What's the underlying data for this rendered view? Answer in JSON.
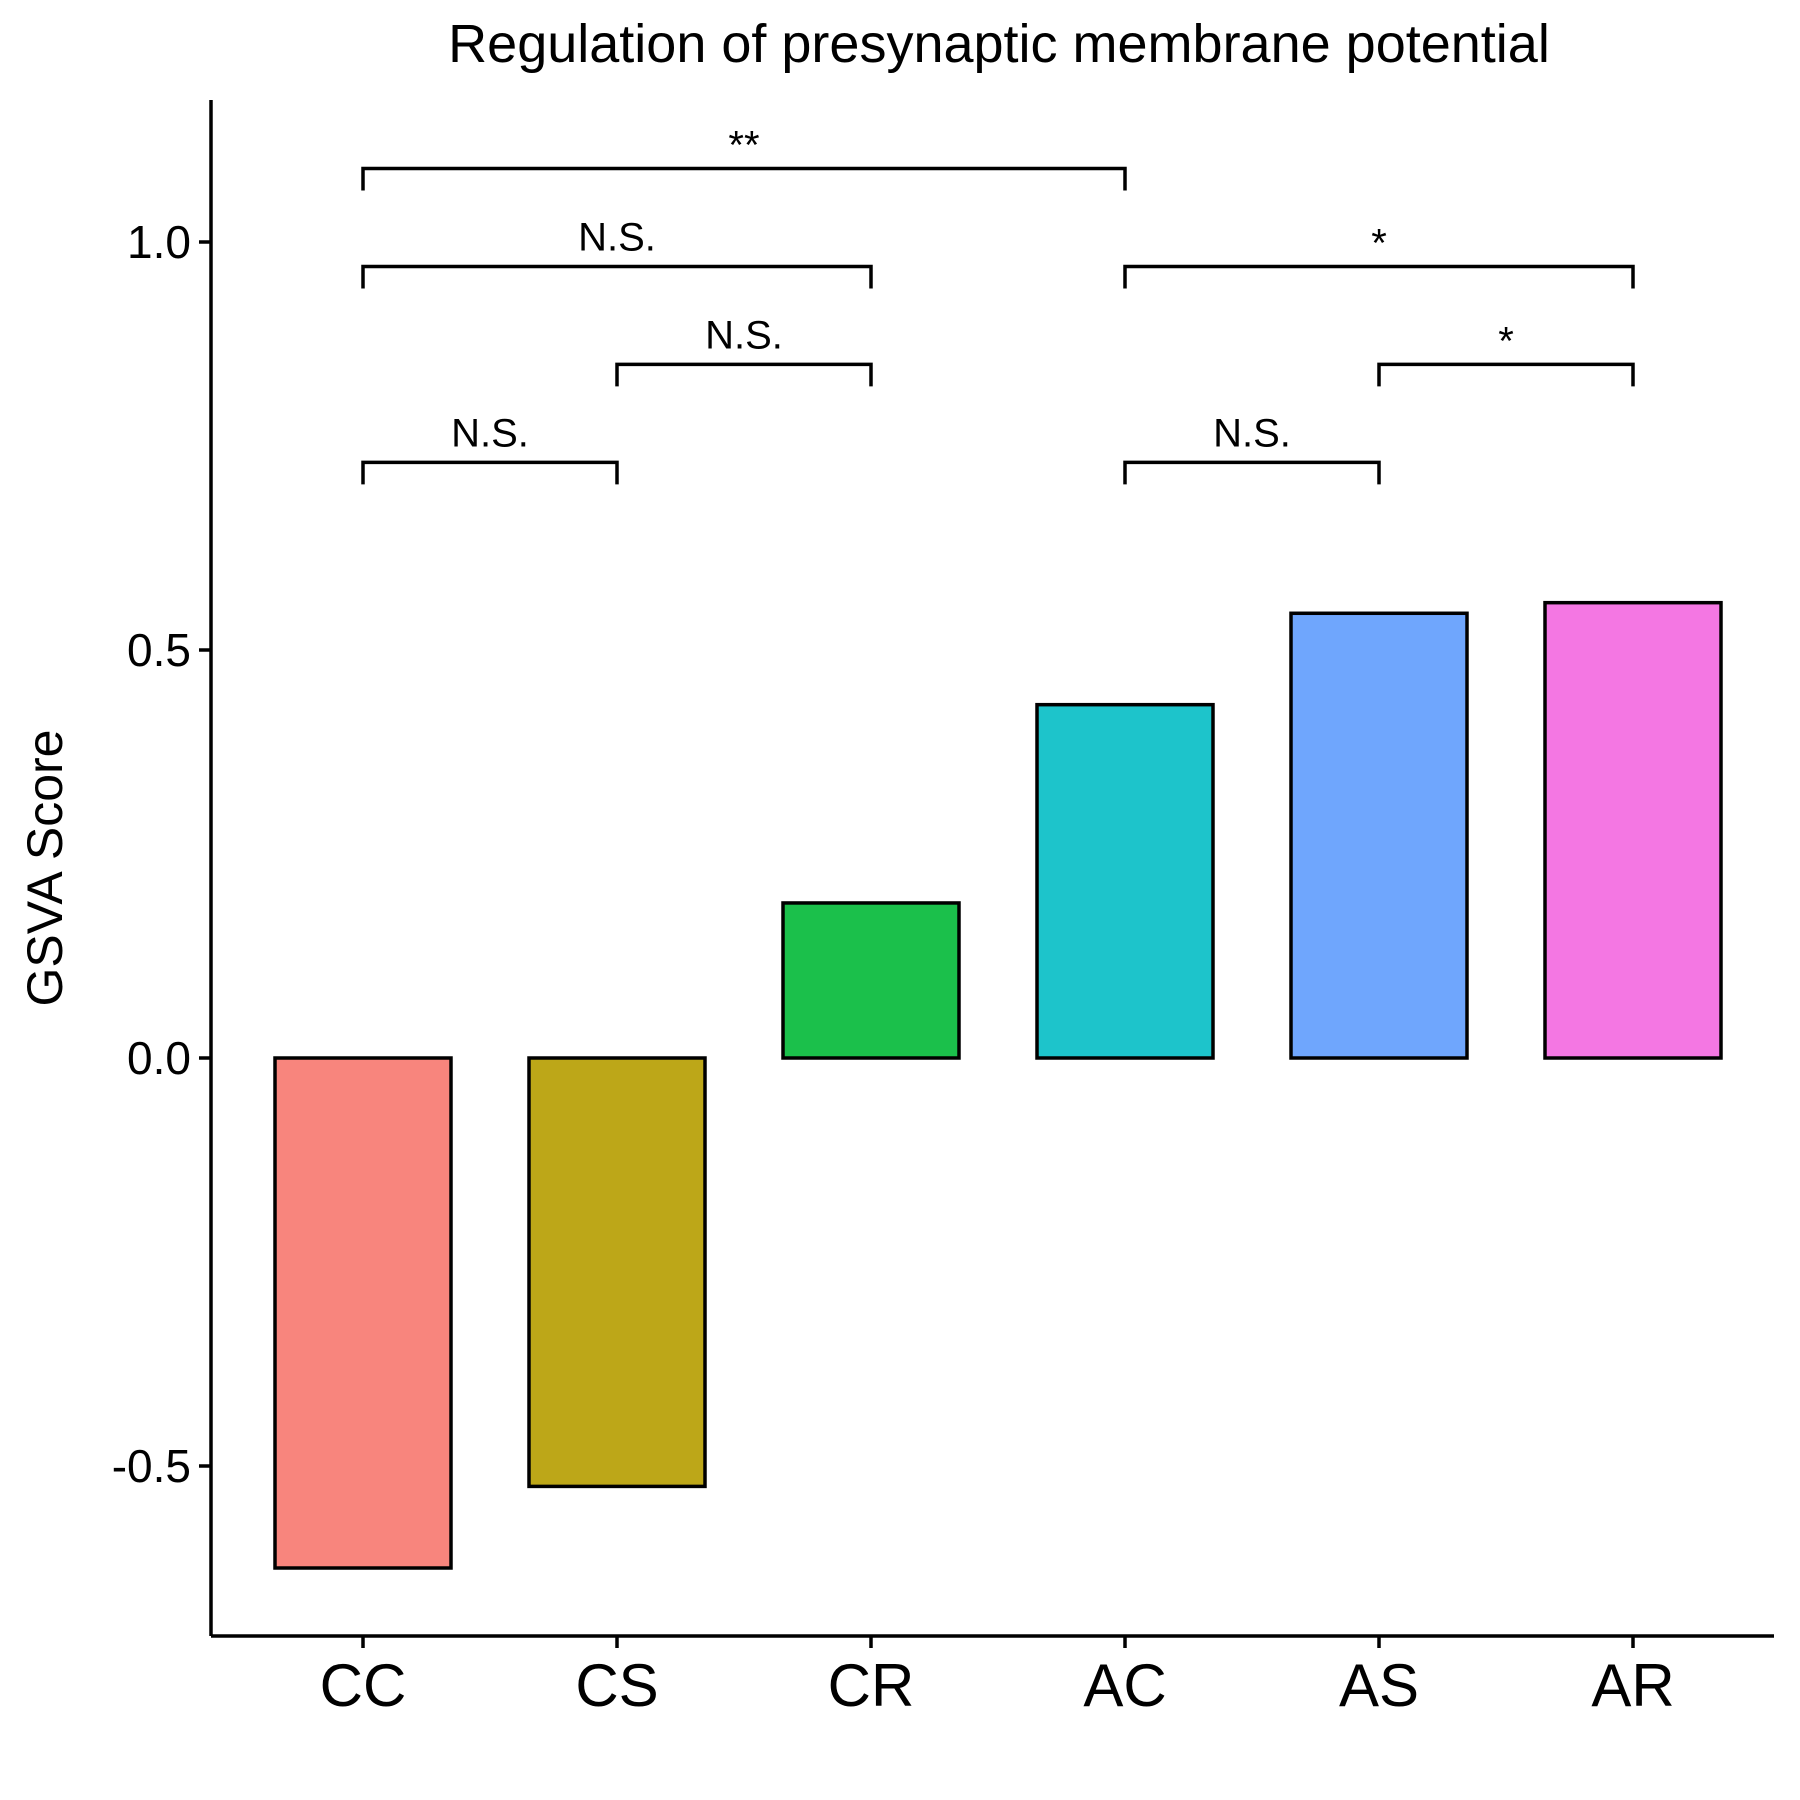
{
  "chart_data": {
    "type": "bar",
    "title": "Regulation of presynaptic membrane potential",
    "xlabel": "",
    "ylabel": "GSVA Score",
    "categories": [
      "CC",
      "CS",
      "CR",
      "AC",
      "AS",
      "AR"
    ],
    "values": [
      -0.625,
      -0.525,
      0.19,
      0.433,
      0.545,
      0.558
    ],
    "colors": [
      "#F8857D",
      "#BDA718",
      "#1BC04B",
      "#1DC4CB",
      "#6FA6FD",
      "#F477E3"
    ],
    "ylim": [
      -0.7,
      1.2
    ],
    "yticks": [
      -0.5,
      0.0,
      0.5,
      1.0
    ],
    "ytick_labels": [
      "-0.5",
      "0.0",
      "0.5",
      "1.0"
    ],
    "grid": false,
    "legend": false,
    "comparisons": [
      {
        "group1": "CC",
        "group2": "CS",
        "label": "N.S.",
        "y": 0.73
      },
      {
        "group1": "CS",
        "group2": "CR",
        "label": "N.S.",
        "y": 0.85
      },
      {
        "group1": "CC",
        "group2": "CR",
        "label": "N.S.",
        "y": 0.97
      },
      {
        "group1": "CC",
        "group2": "AC",
        "label": "**",
        "y": 1.09
      },
      {
        "group1": "AC",
        "group2": "AS",
        "label": "N.S.",
        "y": 0.73
      },
      {
        "group1": "AS",
        "group2": "AR",
        "label": "*",
        "y": 0.85
      },
      {
        "group1": "AC",
        "group2": "AR",
        "label": "*",
        "y": 0.97
      }
    ]
  }
}
